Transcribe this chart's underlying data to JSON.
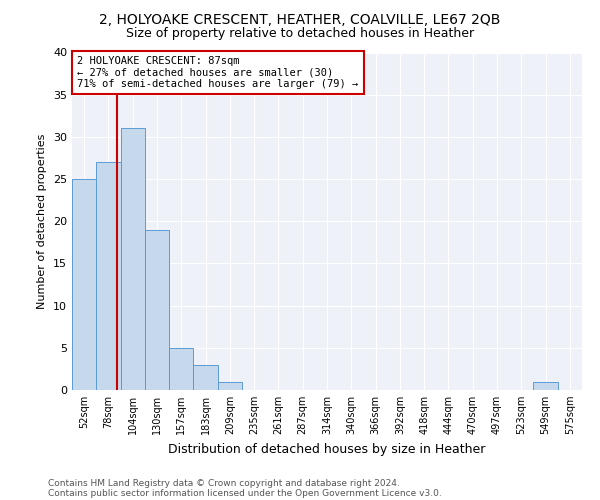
{
  "title1": "2, HOLYOAKE CRESCENT, HEATHER, COALVILLE, LE67 2QB",
  "title2": "Size of property relative to detached houses in Heather",
  "xlabel": "Distribution of detached houses by size in Heather",
  "ylabel": "Number of detached properties",
  "categories": [
    "52sqm",
    "78sqm",
    "104sqm",
    "130sqm",
    "157sqm",
    "183sqm",
    "209sqm",
    "235sqm",
    "261sqm",
    "287sqm",
    "314sqm",
    "340sqm",
    "366sqm",
    "392sqm",
    "418sqm",
    "444sqm",
    "470sqm",
    "497sqm",
    "523sqm",
    "549sqm",
    "575sqm"
  ],
  "values": [
    25,
    27,
    31,
    19,
    5,
    3,
    1,
    0,
    0,
    0,
    0,
    0,
    0,
    0,
    0,
    0,
    0,
    0,
    0,
    1,
    0
  ],
  "bar_color": "#c6d9ec",
  "bar_edge_color": "#5b9bd5",
  "annotation_label": "2 HOLYOAKE CRESCENT: 87sqm",
  "annotation_line1": "← 27% of detached houses are smaller (30)",
  "annotation_line2": "71% of semi-detached houses are larger (79) →",
  "annotation_box_color": "#ffffff",
  "annotation_box_edge": "#cc0000",
  "vline_color": "#cc0000",
  "ylim": [
    0,
    40
  ],
  "yticks": [
    0,
    5,
    10,
    15,
    20,
    25,
    30,
    35,
    40
  ],
  "footnote1": "Contains HM Land Registry data © Crown copyright and database right 2024.",
  "footnote2": "Contains public sector information licensed under the Open Government Licence v3.0.",
  "bg_color": "#eef2f8",
  "bar_width": 1.0,
  "vline_x_index": 1.35
}
